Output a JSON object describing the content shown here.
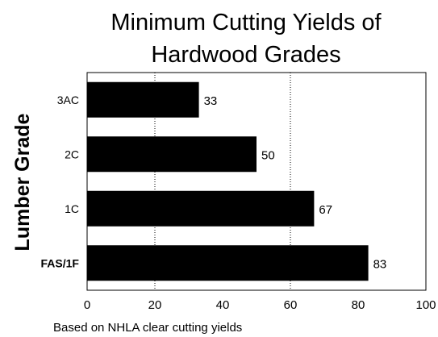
{
  "chart_data": {
    "type": "bar",
    "orientation": "horizontal",
    "title_lines": [
      "Minimum Cutting Yields of",
      "Hardwood Grades"
    ],
    "xlabel": "",
    "ylabel": "Lumber Grade",
    "categories": [
      "3AC",
      "2C",
      "1C",
      "FAS/1F"
    ],
    "values": [
      33,
      50,
      67,
      83
    ],
    "data_labels": [
      "33",
      "50",
      "67",
      "83"
    ],
    "bold_categories": [
      "FAS/1F"
    ],
    "xlim": [
      0,
      100
    ],
    "x_ticks": [
      "0",
      "20",
      "40",
      "60",
      "80",
      "100"
    ],
    "gridlines_at": [
      20,
      60
    ],
    "grid_style": "dotted",
    "bar_color": "#000000",
    "legend": "none"
  },
  "footnote": "Based on NHLA clear cutting yields"
}
